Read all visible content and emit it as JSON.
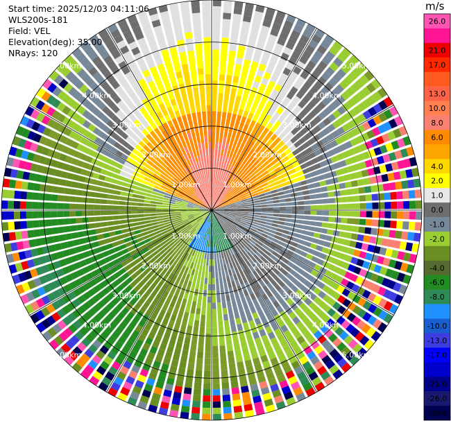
{
  "header": {
    "start_time": "Start time: 2025/12/03 04:11:06",
    "instrument": "WLS200s-181",
    "field": "Field: VEL",
    "elevation": "Elevation(deg): 35.00",
    "nrays": "NRays: 120"
  },
  "colorbar": {
    "unit": "m/s",
    "entries": [
      {
        "label": "26.0",
        "color": "#ff55b4"
      },
      {
        "label": "",
        "color": "#ff1493"
      },
      {
        "label": "21.0",
        "color": "#ee0000"
      },
      {
        "label": "17.0",
        "color": "#ff2a00"
      },
      {
        "label": "",
        "color": "#ff5a1e"
      },
      {
        "label": "13.0",
        "color": "#ff6347"
      },
      {
        "label": "10.0",
        "color": "#ff7f50"
      },
      {
        "label": "8.0",
        "color": "#fa8072"
      },
      {
        "label": "6.0",
        "color": "#ff8c00"
      },
      {
        "label": "",
        "color": "#ffa500"
      },
      {
        "label": "4.0",
        "color": "#ffd700"
      },
      {
        "label": "2.0",
        "color": "#ffff00"
      },
      {
        "label": "1.0",
        "color": "#e8e8e8"
      },
      {
        "label": "0.0",
        "color": "#6e6e6e"
      },
      {
        "label": "-1.0",
        "color": "#778899"
      },
      {
        "label": "-2.0",
        "color": "#9acd32"
      },
      {
        "label": "",
        "color": "#6b8e23"
      },
      {
        "label": "-4.0",
        "color": "#556b2f"
      },
      {
        "label": "-6.0",
        "color": "#228b22"
      },
      {
        "label": "-8.0",
        "color": "#2e8b57"
      },
      {
        "label": "",
        "color": "#1e90ff"
      },
      {
        "label": "-10.0",
        "color": "#1a5fd1"
      },
      {
        "label": "-13.0",
        "color": "#3e3ee0"
      },
      {
        "label": "-17.0",
        "color": "#0000ff"
      },
      {
        "label": "",
        "color": "#0000cd"
      },
      {
        "label": "-21.0",
        "color": "#00008b"
      },
      {
        "label": "-26.0",
        "color": "#191970"
      },
      {
        "label": "-30.0",
        "color": "#000050"
      }
    ]
  },
  "chart_data": {
    "type": "heatmap",
    "projection": "polar-ppi",
    "field": "VEL",
    "nrays": 120,
    "max_range_km": 5.0,
    "range_rings_km": [
      1.0,
      2.0,
      3.0,
      4.0,
      5.0
    ],
    "ring_labels": [
      "1.00km",
      "2.00km",
      "3.00km",
      "4.00km",
      "5.00km"
    ],
    "vmin": -30.0,
    "vmax": 26.0
  }
}
